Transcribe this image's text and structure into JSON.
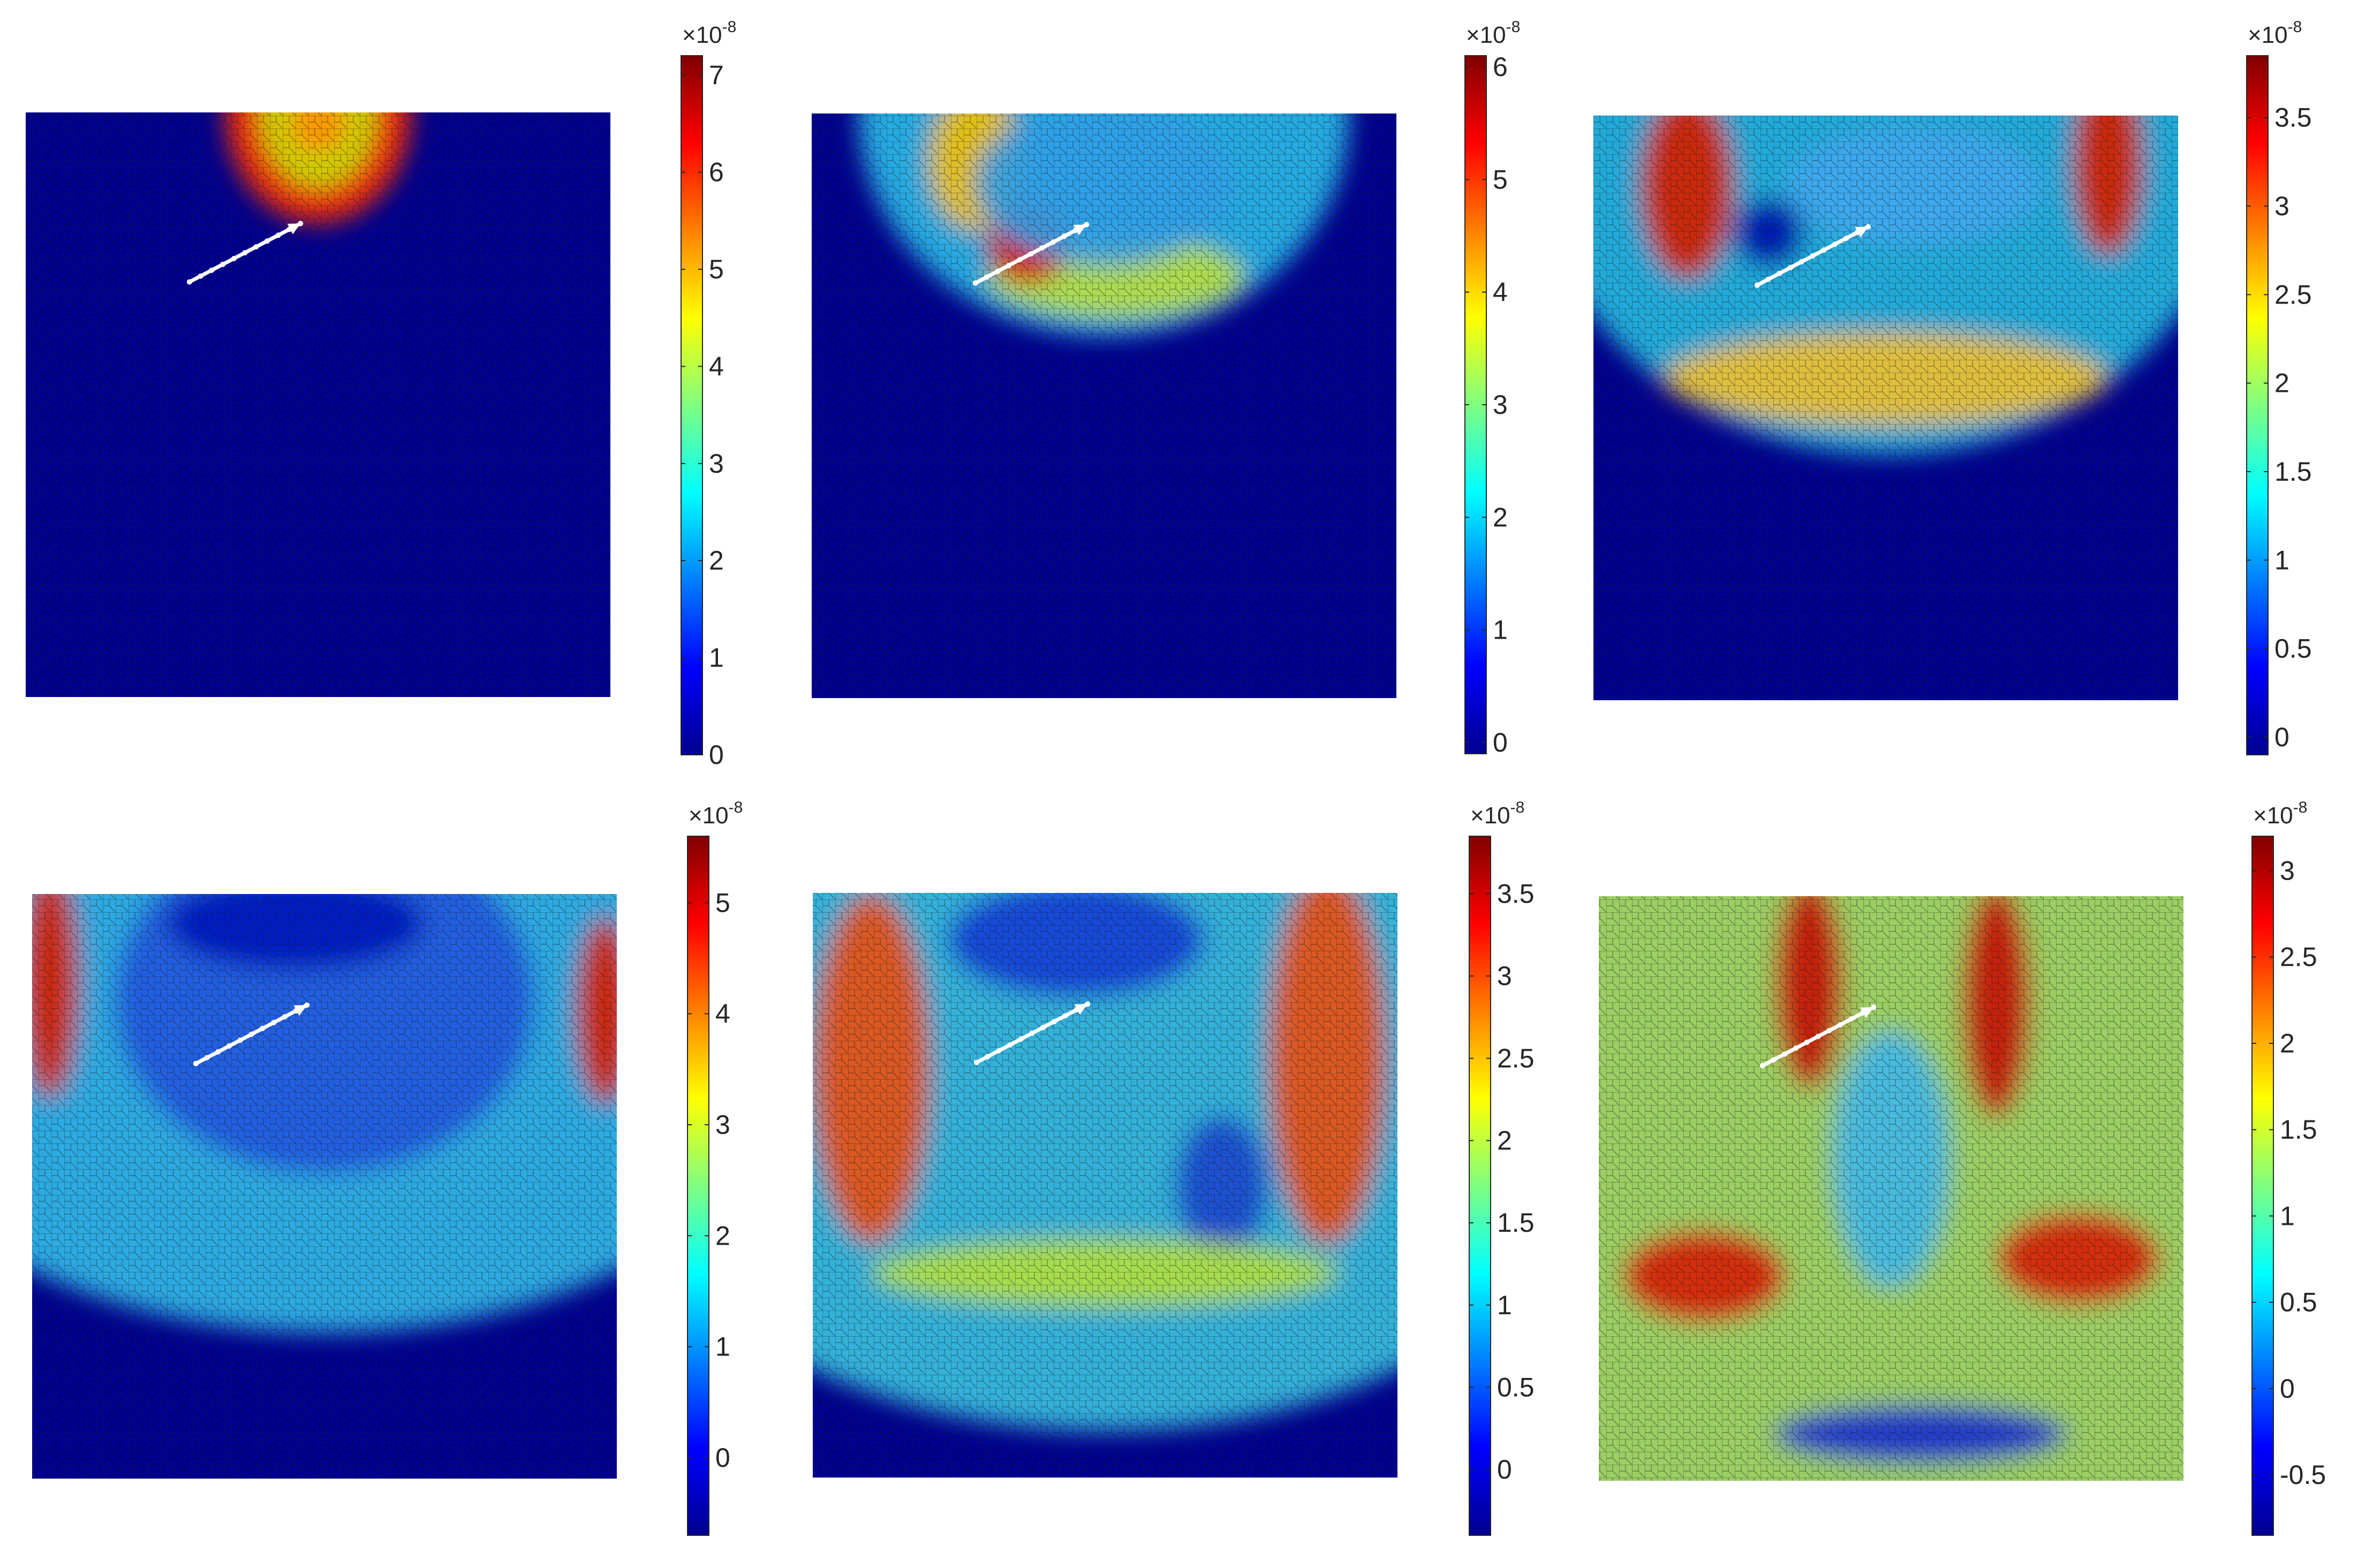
{
  "figure": {
    "layout": "2 rows x 3 columns",
    "colormap": "jet",
    "mesh_color": "#1a1a1a",
    "arrow_color": "#ffffff"
  },
  "chart_data": [
    {
      "type": "heatmap",
      "panel": "row 1, column 1",
      "field_shape": "small semicircular ring at the top edge",
      "colorbar": {
        "exponent": "×10",
        "exponent_power": "-8",
        "min": 0,
        "max": 7.2,
        "tick_labels": [
          "0",
          "1",
          "2",
          "3",
          "4",
          "5",
          "6",
          "7"
        ]
      }
    },
    {
      "type": "heatmap",
      "panel": "row 1, column 2",
      "field_shape": "half-disc front reaching mid-depth, peak near arrow tail",
      "colorbar": {
        "exponent": "×10",
        "exponent_power": "-8",
        "min": -0.1,
        "max": 6.1,
        "tick_labels": [
          "0",
          "1",
          "2",
          "3",
          "4",
          "5",
          "6"
        ]
      }
    },
    {
      "type": "heatmap",
      "panel": "row 1, column 3",
      "field_shape": "wide half-disc front reaching ~55% depth",
      "colorbar": {
        "exponent": "×10",
        "exponent_power": "-8",
        "min": -0.1,
        "max": 3.85,
        "tick_labels": [
          "0",
          "0.5",
          "1",
          "1.5",
          "2",
          "2.5",
          "3",
          "3.5"
        ]
      }
    },
    {
      "type": "heatmap",
      "panel": "row 2, column 1",
      "field_shape": "front reaching ~75% depth, hot bands at side edges",
      "colorbar": {
        "exponent": "×10",
        "exponent_power": "-8",
        "min": -0.7,
        "max": 5.6,
        "tick_labels": [
          "0",
          "1",
          "2",
          "3",
          "4",
          "5"
        ]
      }
    },
    {
      "type": "heatmap",
      "panel": "row 2, column 2",
      "field_shape": "front near bottom, vertical hot bands on both sides",
      "colorbar": {
        "exponent": "×10",
        "exponent_power": "-8",
        "min": -0.4,
        "max": 3.85,
        "tick_labels": [
          "0",
          "0.5",
          "1",
          "1.5",
          "2",
          "2.5",
          "3",
          "3.5"
        ]
      }
    },
    {
      "type": "heatmap",
      "panel": "row 2, column 3",
      "field_shape": "V-shaped hot bands diverging toward bottom, cool patch at bottom centre",
      "colorbar": {
        "exponent": "×10",
        "exponent_power": "-8",
        "min": -0.85,
        "max": 3.2,
        "tick_labels": [
          "-0.5",
          "0",
          "0.5",
          "1",
          "1.5",
          "2",
          "2.5",
          "3"
        ]
      }
    }
  ]
}
